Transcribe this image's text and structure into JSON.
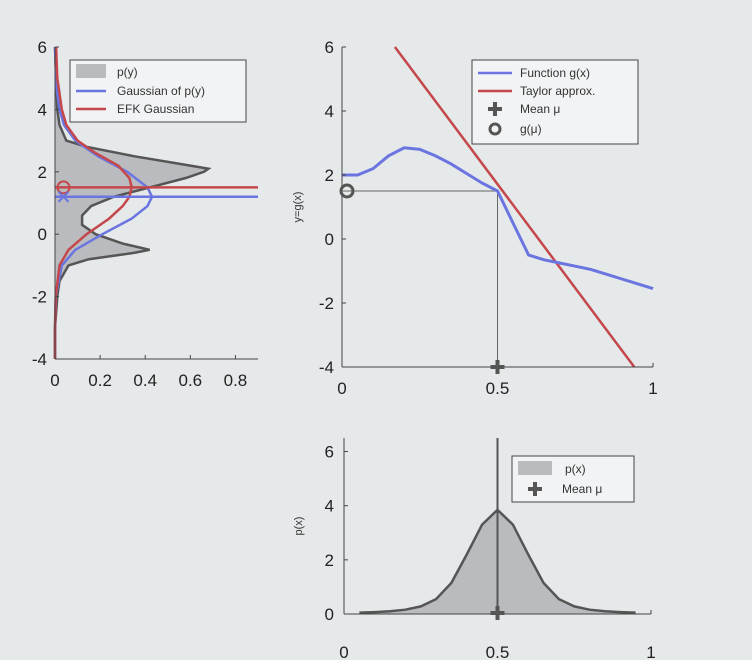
{
  "colors": {
    "background": "#e6e9ea",
    "axis": "#444444",
    "function": "#6b75e0",
    "taylor": "#c4474b",
    "pdf_fill": "#b9bbbe",
    "pdf_line": "#555555",
    "guide": "#666666"
  },
  "chart_data": [
    {
      "type": "area",
      "orientation": "horizontal",
      "xlim": [
        0,
        0.9
      ],
      "ylim": [
        -4,
        6
      ],
      "xticks": [
        "0",
        "0.2",
        "0.4",
        "0.6",
        "0.8"
      ],
      "yticks": [
        "-4",
        "-2",
        "0",
        "2",
        "4",
        "6"
      ],
      "xlabel": "",
      "ylabel": "",
      "legend": {
        "placement": "top-right",
        "entries": [
          "p(y)",
          "Gaussian of p(y)",
          "EFK Gaussian"
        ]
      },
      "series": [
        {
          "name": "p(y)",
          "y": [
            -4,
            -3,
            -2,
            -1.5,
            -1,
            -0.8,
            -0.6,
            -0.5,
            -0.3,
            0,
            0.3,
            0.6,
            0.9,
            1.2,
            1.5,
            1.8,
            2.0,
            2.1,
            2.2,
            2.5,
            2.8,
            3.0,
            3.5,
            4,
            5,
            6
          ],
          "x": [
            0,
            0,
            0.01,
            0.02,
            0.06,
            0.15,
            0.35,
            0.42,
            0.3,
            0.18,
            0.12,
            0.12,
            0.16,
            0.26,
            0.42,
            0.58,
            0.66,
            0.68,
            0.6,
            0.35,
            0.14,
            0.05,
            0.02,
            0.01,
            0.005,
            0
          ]
        },
        {
          "name": "Gaussian of p(y)",
          "y": [
            -4,
            -3,
            -2,
            -1,
            -0.5,
            0,
            0.5,
            0.9,
            1.2,
            1.5,
            2.0,
            2.5,
            3.0,
            3.5,
            4,
            4.5,
            5,
            6
          ],
          "x": [
            0,
            0,
            0.003,
            0.03,
            0.09,
            0.21,
            0.34,
            0.41,
            0.43,
            0.41,
            0.32,
            0.19,
            0.09,
            0.04,
            0.02,
            0.01,
            0.005,
            0
          ]
        },
        {
          "name": "EFK Gaussian",
          "y": [
            -4,
            -3,
            -2,
            -1,
            -0.5,
            0,
            0.5,
            0.9,
            1.2,
            1.5,
            1.8,
            2.2,
            2.6,
            3.0,
            3.5,
            4,
            5,
            6
          ],
          "x": [
            0,
            0,
            0.003,
            0.02,
            0.06,
            0.14,
            0.24,
            0.3,
            0.33,
            0.34,
            0.33,
            0.28,
            0.18,
            0.1,
            0.05,
            0.03,
            0.01,
            0.005
          ]
        }
      ],
      "reference_lines": [
        {
          "series": "EFK Gaussian",
          "y": 1.5
        },
        {
          "series": "Gaussian of p(y)",
          "y": 1.2
        }
      ],
      "markers": [
        {
          "shape": "circle",
          "x": 0.02,
          "y": 1.5
        },
        {
          "shape": "x",
          "x": 0.02,
          "y": 1.2
        }
      ]
    },
    {
      "type": "line",
      "xlim": [
        0,
        1
      ],
      "ylim": [
        -4,
        6
      ],
      "xticks": [
        "0",
        "0.5",
        "1"
      ],
      "yticks": [
        "-4",
        "-2",
        "0",
        "2",
        "4",
        "6"
      ],
      "xlabel": "",
      "ylabel": "y=g(x)",
      "legend": {
        "placement": "top-right",
        "entries": [
          "Function g(x)",
          "Taylor approx.",
          "Mean μ",
          "g(μ)"
        ]
      },
      "series": [
        {
          "name": "Function g(x)",
          "x": [
            0,
            0.05,
            0.1,
            0.15,
            0.2,
            0.25,
            0.3,
            0.35,
            0.4,
            0.45,
            0.5,
            0.55,
            0.6,
            0.65,
            0.7,
            0.75,
            0.8,
            0.85,
            0.9,
            0.95,
            1.0
          ],
          "y": [
            2.0,
            2.0,
            2.2,
            2.6,
            2.85,
            2.8,
            2.6,
            2.35,
            2.05,
            1.75,
            1.5,
            0.5,
            -0.5,
            -0.65,
            -0.75,
            -0.85,
            -0.95,
            -1.1,
            -1.25,
            -1.4,
            -1.55
          ]
        },
        {
          "name": "Taylor approx.",
          "x": [
            0.17,
            0.94
          ],
          "y": [
            6,
            -4
          ]
        }
      ],
      "guides": {
        "x": 0.5,
        "y": 1.5
      },
      "markers": [
        {
          "name": "Mean μ",
          "shape": "plus",
          "x": 0.5,
          "y": -4
        },
        {
          "name": "g(μ)",
          "shape": "circle",
          "x": 0,
          "y": 1.5
        }
      ]
    },
    {
      "type": "area",
      "xlim": [
        0,
        1
      ],
      "ylim": [
        0,
        6.5
      ],
      "xticks": [
        "0",
        "0.5",
        "1"
      ],
      "yticks": [
        "0",
        "2",
        "4",
        "6"
      ],
      "xlabel": "",
      "ylabel": "p(x)",
      "legend": {
        "placement": "top-right",
        "entries": [
          "p(x)",
          "Mean μ"
        ]
      },
      "series": [
        {
          "name": "p(x)",
          "x": [
            0.05,
            0.1,
            0.15,
            0.2,
            0.25,
            0.3,
            0.35,
            0.4,
            0.45,
            0.5,
            0.55,
            0.6,
            0.65,
            0.7,
            0.75,
            0.8,
            0.85,
            0.9,
            0.95
          ],
          "y": [
            0.05,
            0.07,
            0.1,
            0.16,
            0.28,
            0.55,
            1.15,
            2.2,
            3.3,
            3.85,
            3.3,
            2.2,
            1.15,
            0.55,
            0.28,
            0.16,
            0.1,
            0.07,
            0.05
          ]
        }
      ],
      "guides": {
        "x": 0.5
      },
      "markers": [
        {
          "name": "Mean μ",
          "shape": "plus",
          "x": 0.5,
          "y": 0
        }
      ]
    }
  ]
}
